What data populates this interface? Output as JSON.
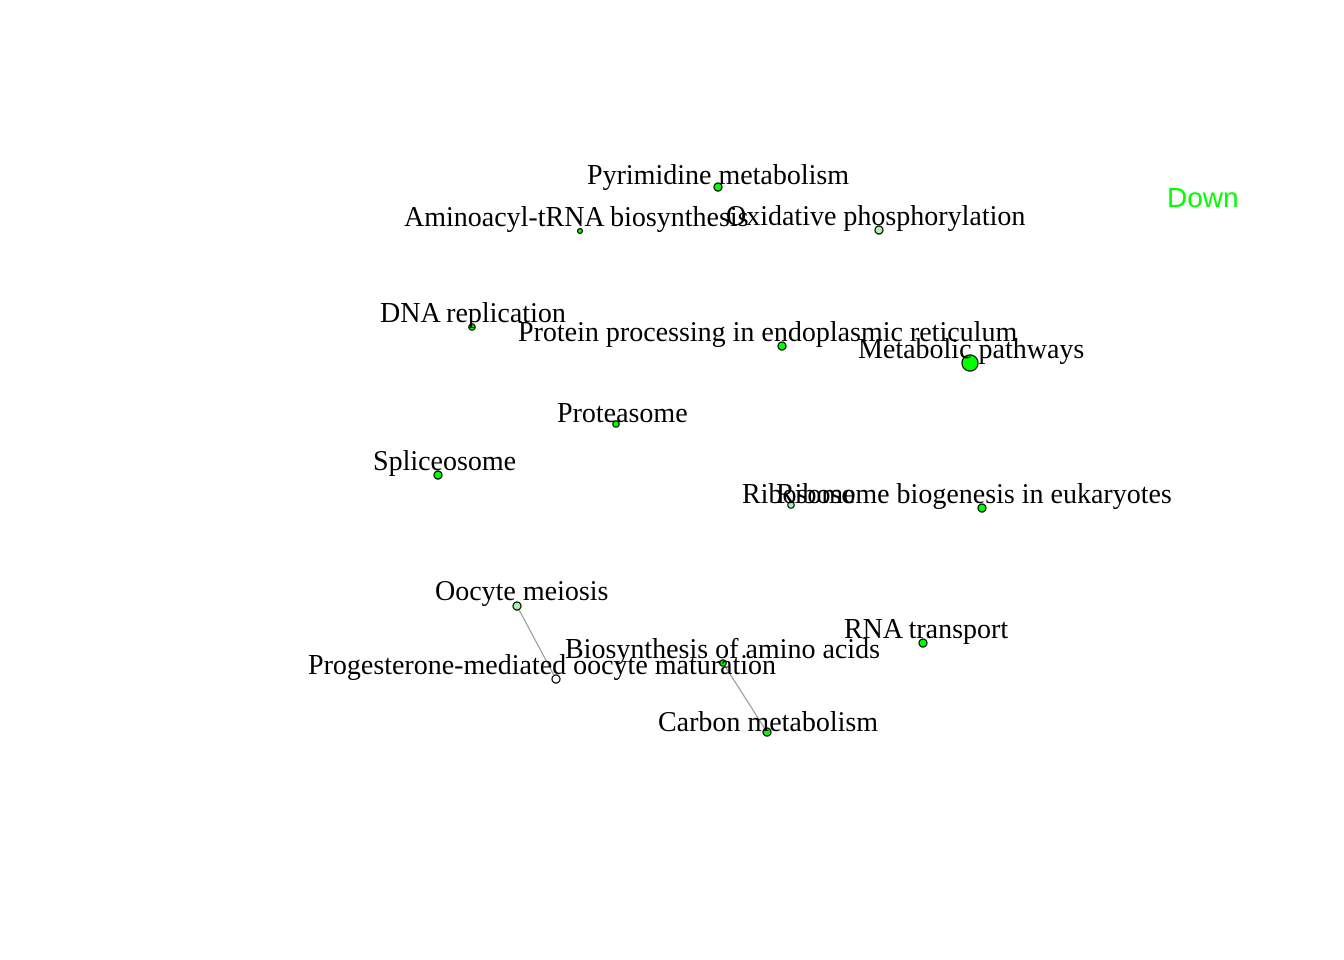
{
  "legend": {
    "label": "Down",
    "color": "#00ff00"
  },
  "colors": {
    "node_fill": "#00ff00",
    "node_fill_light": "#a8f5a8",
    "node_fill_white": "#ffffff",
    "edge": "#9a9a9a"
  },
  "nodes": [
    {
      "id": "pyrimidine",
      "label": "Pyrimidine metabolism",
      "fill": "node_fill",
      "weight": 1
    },
    {
      "id": "aminoacyl",
      "label": "Aminoacyl-tRNA biosynthesis",
      "fill": "node_fill",
      "weight": 0.6
    },
    {
      "id": "oxidative",
      "label": "Oxidative phosphorylation",
      "fill": "node_fill_light",
      "weight": 1
    },
    {
      "id": "dna",
      "label": "DNA replication",
      "fill": "node_fill",
      "weight": 0.8
    },
    {
      "id": "protein",
      "label": "Protein processing in endoplasmic reticulum",
      "fill": "node_fill",
      "weight": 1
    },
    {
      "id": "metabolic",
      "label": "Metabolic pathways",
      "fill": "node_fill",
      "weight": 2
    },
    {
      "id": "proteasome",
      "label": "Proteasome",
      "fill": "node_fill",
      "weight": 0.8
    },
    {
      "id": "spliceosome",
      "label": "Spliceosome",
      "fill": "node_fill",
      "weight": 1
    },
    {
      "id": "ribosome",
      "label": "Ribosome",
      "fill": "node_fill_light",
      "weight": 0.8
    },
    {
      "id": "ribosome_bio",
      "label": "Ribosome biogenesis in eukaryotes",
      "fill": "node_fill",
      "weight": 1
    },
    {
      "id": "oocyte",
      "label": "Oocyte meiosis",
      "fill": "node_fill_light",
      "weight": 1
    },
    {
      "id": "progesterone",
      "label": "Progesterone-mediated oocyte maturation",
      "fill": "node_fill_white",
      "weight": 1
    },
    {
      "id": "biosynthesis",
      "label": "Biosynthesis of amino acids",
      "fill": "node_fill",
      "weight": 0.8
    },
    {
      "id": "rna",
      "label": "RNA transport",
      "fill": "node_fill",
      "weight": 1
    },
    {
      "id": "carbon",
      "label": "Carbon metabolism",
      "fill": "node_fill",
      "weight": 1
    }
  ],
  "edges": [
    {
      "source": "oocyte",
      "target": "progesterone"
    },
    {
      "source": "biosynthesis",
      "target": "carbon"
    }
  ]
}
